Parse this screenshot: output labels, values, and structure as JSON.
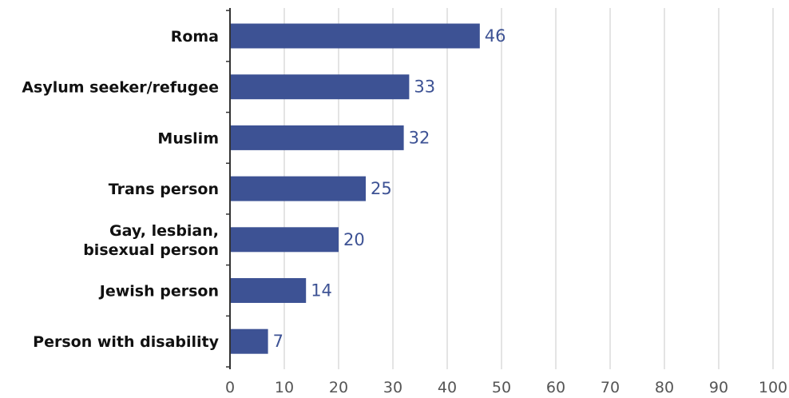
{
  "chart_data": {
    "type": "bar",
    "orientation": "horizontal",
    "title": "",
    "xlabel": "",
    "ylabel": "",
    "categories": [
      [
        "Roma"
      ],
      [
        "Asylum seeker/refugee"
      ],
      [
        "Muslim"
      ],
      [
        "Trans person"
      ],
      [
        "Gay, lesbian,",
        "bisexual person"
      ],
      [
        "Jewish person"
      ],
      [
        "Person with disability"
      ]
    ],
    "values": [
      46,
      33,
      32,
      25,
      20,
      14,
      7
    ],
    "xlim": [
      0,
      100
    ],
    "xticks": [
      "0",
      "10",
      "20",
      "30",
      "40",
      "50",
      "60",
      "70",
      "80",
      "90",
      "100"
    ],
    "grid": "vertical",
    "data_labels": true,
    "legend": "none",
    "colors": {
      "bar": "#3d5294",
      "value_label": "#3d5294",
      "axis": "#333333",
      "grid": "#c8c8c8"
    }
  }
}
